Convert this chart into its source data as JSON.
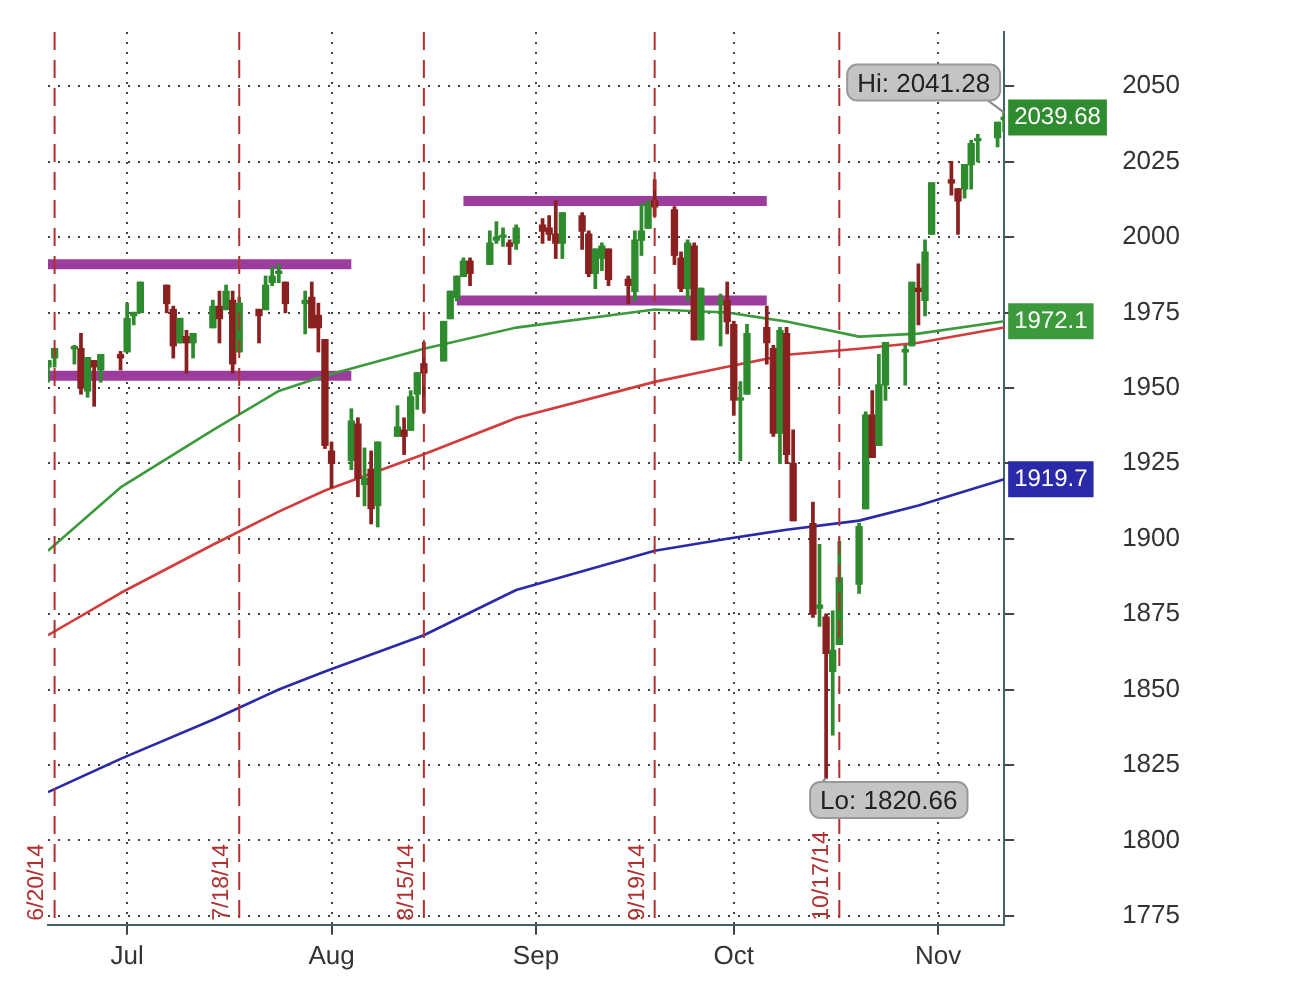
{
  "chart_data": {
    "type": "candlestick",
    "x": [
      "--06-19",
      "--06-20",
      "--06-23",
      "--06-24",
      "--06-25",
      "--06-26",
      "--06-27",
      "--06-30",
      "--07-01",
      "--07-02",
      "--07-03",
      "--07-07",
      "--07-08",
      "--07-09",
      "--07-10",
      "--07-11",
      "--07-14",
      "--07-15",
      "--07-16",
      "--07-17",
      "--07-18",
      "--07-21",
      "--07-22",
      "--07-23",
      "--07-24",
      "--07-25",
      "--07-28",
      "--07-29",
      "--07-30",
      "--07-31",
      "--08-01",
      "--08-04",
      "--08-05",
      "--08-06",
      "--08-07",
      "--08-08",
      "--08-11",
      "--08-12",
      "--08-13",
      "--08-14",
      "--08-15",
      "--08-18",
      "--08-19",
      "--08-20",
      "--08-21",
      "--08-22",
      "--08-25",
      "--08-26",
      "--08-27",
      "--08-28",
      "--08-29",
      "--09-02",
      "--09-03",
      "--09-04",
      "--09-05",
      "--09-08",
      "--09-09",
      "--09-10",
      "--09-11",
      "--09-12",
      "--09-15",
      "--09-16",
      "--09-17",
      "--09-18",
      "--09-19",
      "--09-22",
      "--09-23",
      "--09-24",
      "--09-25",
      "--09-26",
      "--09-29",
      "--09-30",
      "--10-01",
      "--10-02",
      "--10-03",
      "--10-06",
      "--10-07",
      "--10-08",
      "--10-09",
      "--10-10",
      "--10-13",
      "--10-14",
      "--10-15",
      "--10-16",
      "--10-17",
      "--10-20",
      "--10-21",
      "--10-22",
      "--10-23",
      "--10-24",
      "--10-27",
      "--10-28",
      "--10-29",
      "--10-30",
      "--10-31",
      "--11-03",
      "--11-04",
      "--11-05",
      "--11-06",
      "--11-07",
      "--11-10",
      "--11-11"
    ],
    "ohlc": [
      [
        1957,
        1959,
        1952,
        1959
      ],
      [
        1960,
        1963,
        1957,
        1963
      ],
      [
        1963,
        1964,
        1958,
        1963
      ],
      [
        1963,
        1968,
        1948,
        1950
      ],
      [
        1949,
        1960,
        1947,
        1960
      ],
      [
        1959,
        1959,
        1944,
        1957
      ],
      [
        1956,
        1961,
        1952,
        1961
      ],
      [
        1961,
        1962,
        1956,
        1960
      ],
      [
        1962,
        1978,
        1962,
        1973
      ],
      [
        1974,
        1975,
        1971,
        1975
      ],
      [
        1975,
        1985,
        1975,
        1985
      ],
      [
        1984,
        1984,
        1975,
        1978
      ],
      [
        1976,
        1977,
        1960,
        1964
      ],
      [
        1965,
        1973,
        1965,
        1973
      ],
      [
        1967,
        1969,
        1955,
        1965
      ],
      [
        1965,
        1968,
        1960,
        1968
      ],
      [
        1970,
        1979,
        1970,
        1977
      ],
      [
        1977,
        1982,
        1965,
        1973
      ],
      [
        1976,
        1984,
        1976,
        1982
      ],
      [
        1979,
        1982,
        1955,
        1958
      ],
      [
        1962,
        1980,
        1962,
        1978
      ],
      [
        1976,
        1976,
        1965,
        1974
      ],
      [
        1976,
        1987,
        1976,
        1984
      ],
      [
        1985,
        1990,
        1984,
        1987
      ],
      [
        1988,
        1991,
        1985,
        1988
      ],
      [
        1985,
        1985,
        1975,
        1978
      ],
      [
        1978,
        1982,
        1968,
        1979
      ],
      [
        1980,
        1985,
        1970,
        1970
      ],
      [
        1974,
        1978,
        1962,
        1970
      ],
      [
        1966,
        1966,
        1930,
        1931
      ],
      [
        1929,
        1932,
        1917,
        1925
      ],
      [
        1926,
        1943,
        1923,
        1939
      ],
      [
        1938,
        1940,
        1914,
        1920
      ],
      [
        1918,
        1930,
        1911,
        1920
      ],
      [
        1923,
        1929,
        1905,
        1910
      ],
      [
        1911,
        1932,
        1904,
        1932
      ],
      [
        1934,
        1944,
        1934,
        1937
      ],
      [
        1936,
        1940,
        1928,
        1934
      ],
      [
        1936,
        1949,
        1936,
        1947
      ],
      [
        1948,
        1955,
        1943,
        1955
      ],
      [
        1958,
        1965,
        1942,
        1955
      ],
      [
        1959,
        1972,
        1959,
        1972
      ],
      [
        1973,
        1982,
        1973,
        1982
      ],
      [
        1980,
        1987,
        1979,
        1987
      ],
      [
        1987,
        1993,
        1987,
        1992
      ],
      [
        1992,
        1993,
        1984,
        1988
      ],
      [
        1991,
        2002,
        1991,
        1998
      ],
      [
        1999,
        2005,
        1998,
        2000
      ],
      [
        2000,
        2003,
        1997,
        2000
      ],
      [
        1998,
        1999,
        1991,
        1997
      ],
      [
        1998,
        2004,
        1996,
        2003
      ],
      [
        2004,
        2006,
        1998,
        2002
      ],
      [
        2003,
        2007,
        1999,
        2001
      ],
      [
        2001,
        2012,
        1993,
        1998
      ],
      [
        1998,
        2008,
        1993,
        2008
      ],
      [
        2007,
        2008,
        1996,
        2002
      ],
      [
        2001,
        2002,
        1987,
        1988
      ],
      [
        1988,
        1996,
        1983,
        1996
      ],
      [
        1993,
        1998,
        1989,
        1997
      ],
      [
        1996,
        1996,
        1984,
        1986
      ],
      [
        1986,
        1987,
        1978,
        1984
      ],
      [
        1982,
        2002,
        1979,
        1999
      ],
      [
        1999,
        2011,
        1994,
        2002
      ],
      [
        2003,
        2012,
        2003,
        2011
      ],
      [
        2012,
        2019,
        2007,
        2010
      ],
      [
        2009,
        2010,
        1991,
        1994
      ],
      [
        1993,
        1995,
        1982,
        1983
      ],
      [
        1983,
        1999,
        1979,
        1998
      ],
      [
        1997,
        1998,
        1966,
        1966
      ],
      [
        1966,
        1983,
        1966,
        1983
      ],
      [
        1978,
        1981,
        1964,
        1978
      ],
      [
        1979,
        1985,
        1968,
        1972
      ],
      [
        1971,
        1972,
        1941,
        1946
      ],
      [
        1946,
        1952,
        1926,
        1946
      ],
      [
        1948,
        1971,
        1948,
        1968
      ],
      [
        1970,
        1977,
        1958,
        1965
      ],
      [
        1963,
        1964,
        1934,
        1935
      ],
      [
        1935,
        1970,
        1925,
        1969
      ],
      [
        1968,
        1970,
        1925,
        1928
      ],
      [
        1925,
        1936,
        1906,
        1906
      ],
      [
        1905,
        1912,
        1874,
        1875
      ],
      [
        1877,
        1898,
        1871,
        1878
      ],
      [
        1874,
        1875,
        1820.66,
        1862
      ],
      [
        1856,
        1876,
        1835,
        1863
      ],
      [
        1865,
        1899,
        1865,
        1887
      ],
      [
        1885,
        1905,
        1882,
        1904
      ],
      [
        1910,
        1942,
        1910,
        1941
      ],
      [
        1941,
        1949,
        1927,
        1927
      ],
      [
        1931,
        1961,
        1931,
        1951
      ],
      [
        1951,
        1965,
        1946,
        1965
      ],
      [
        1962,
        1964,
        1951,
        1962
      ],
      [
        1964,
        1985,
        1964,
        1985
      ],
      [
        1983,
        1991,
        1971,
        1982
      ],
      [
        1979,
        1999,
        1974,
        1995
      ],
      [
        2001,
        2018,
        2001,
        2018
      ],
      [
        2019,
        2025,
        2014,
        2018
      ],
      [
        2016,
        2016,
        2001,
        2012
      ],
      [
        2016,
        2024,
        2013,
        2024
      ],
      [
        2024,
        2032,
        2016,
        2031
      ],
      [
        2032,
        2034,
        2025,
        2032
      ],
      [
        2033,
        2038,
        2030,
        2038
      ],
      [
        2039,
        2041.28,
        2035,
        2039.68
      ]
    ],
    "series": [
      {
        "type": "line",
        "color": "#3c9a3c",
        "x": [
          "--06-19",
          "--06-30",
          "--07-14",
          "--07-24",
          "--07-31",
          "--08-15",
          "--08-29",
          "--09-19",
          "--09-30",
          "--10-09",
          "--10-20",
          "--10-29",
          "--11-11"
        ],
        "values": [
          1896,
          1917,
          1936,
          1949,
          1954,
          1963,
          1970,
          1976,
          1975,
          1972,
          1967,
          1968,
          1972.1
        ],
        "value_labels": [
          null,
          null,
          null,
          null,
          null,
          null,
          null,
          null,
          null,
          null,
          null,
          null,
          "1972.1"
        ]
      },
      {
        "type": "line",
        "color": "#d23c3c",
        "x": [
          "--06-19",
          "--06-30",
          "--07-14",
          "--07-24",
          "--07-31",
          "--08-15",
          "--08-29",
          "--09-19",
          "--09-30",
          "--10-09",
          "--10-20",
          "--10-29",
          "--11-11"
        ],
        "values": [
          1868,
          1882,
          1898,
          1909,
          1916,
          1928,
          1940,
          1952,
          1957,
          1961,
          1963,
          1965,
          1970
        ]
      },
      {
        "type": "line",
        "color": "#2a2aa8",
        "x": [
          "--06-19",
          "--06-30",
          "--07-14",
          "--07-24",
          "--07-31",
          "--08-15",
          "--08-29",
          "--09-19",
          "--09-30",
          "--10-09",
          "--10-20",
          "--10-29",
          "--11-11"
        ],
        "values": [
          1816,
          1827,
          1840,
          1850,
          1856,
          1868,
          1883,
          1896,
          1900,
          1903,
          1906,
          1911,
          1919.7
        ],
        "value_labels": [
          null,
          null,
          null,
          null,
          null,
          null,
          null,
          null,
          null,
          null,
          null,
          null,
          "1919.7"
        ]
      },
      {
        "type": "line",
        "color": "#9c3c9c",
        "x": [
          "--06-19",
          "--08-04"
        ],
        "values": [
          1991,
          1991
        ]
      },
      {
        "type": "line",
        "color": "#9c3c9c",
        "x": [
          "--06-19",
          "--08-04"
        ],
        "values": [
          1954,
          1954
        ]
      },
      {
        "type": "line",
        "color": "#9c3c9c",
        "x": [
          "--08-21",
          "--10-06"
        ],
        "values": [
          2012,
          2012
        ]
      },
      {
        "type": "line",
        "color": "#9c3c9c",
        "x": [
          "--08-20",
          "--10-06"
        ],
        "values": [
          1979,
          1979
        ]
      }
    ],
    "xlim": [
      "--06-19",
      "--11-11"
    ],
    "xticks": [
      {
        "value": "--07-01",
        "label": "Jul"
      },
      {
        "value": "--08-01",
        "label": "Aug"
      },
      {
        "value": "--09-01",
        "label": "Sep"
      },
      {
        "value": "--10-01",
        "label": "Oct"
      },
      {
        "value": "--11-01",
        "label": "Nov"
      }
    ],
    "ylim": [
      1772,
      2068
    ],
    "yticks": [
      1775,
      1800,
      1825,
      1850,
      1875,
      1900,
      1925,
      1950,
      1975,
      2000,
      2025,
      2050
    ],
    "grid": true,
    "ref_lines": [
      {
        "axis": "x",
        "value": "--06-20",
        "label": "6/20/14",
        "color": "#b03030",
        "line_style": "dashed"
      },
      {
        "axis": "x",
        "value": "--07-18",
        "label": "7/18/14",
        "color": "#b03030",
        "line_style": "dashed"
      },
      {
        "axis": "x",
        "value": "--08-15",
        "label": "8/15/14",
        "color": "#b03030",
        "line_style": "dashed"
      },
      {
        "axis": "x",
        "value": "--09-19",
        "label": "9/19/14",
        "color": "#b03030",
        "line_style": "dashed"
      },
      {
        "axis": "x",
        "value": "--10-17",
        "label": "10/17/14",
        "color": "#b03030",
        "line_style": "dashed"
      }
    ],
    "annotations": [
      {
        "text": "Hi: 2041.28",
        "x": "--11-11",
        "y": 2041.28
      },
      {
        "text": "Lo: 1820.66",
        "x": "--10-15",
        "y": 1820.66
      },
      {
        "text": "2039.68",
        "x": "--11-11",
        "y": 2039.68
      }
    ]
  }
}
